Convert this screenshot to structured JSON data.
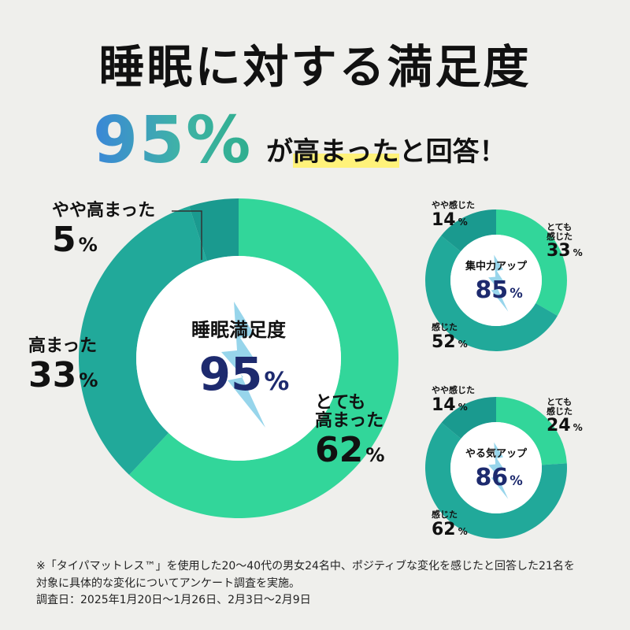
{
  "headline": {
    "title": "睡眠に対する満足度",
    "big_value": "95%",
    "tail_pre": "が",
    "tail_highlight": "高まった",
    "tail_post": "と回答！"
  },
  "colors": {
    "dark_teal": "#1aa297",
    "mid_teal": "#21b19f",
    "bright_green": "#32d69a",
    "center_value": "#1d2a6e",
    "bolt": "#74c7e4",
    "highlight": "#fff27a"
  },
  "chart_data": [
    {
      "type": "pie",
      "center_title": "睡眠満足度",
      "center_value": "95",
      "center_unit": "%",
      "slices": [
        {
          "label": "とても高まった",
          "label_lines": [
            "とても",
            "高まった"
          ],
          "value": 62,
          "color": "#32d69a"
        },
        {
          "label": "高まった",
          "label_lines": [
            "高まった"
          ],
          "value": 33,
          "color": "#21a99a"
        },
        {
          "label": "やや高まった",
          "label_lines": [
            "やや高まった"
          ],
          "value": 5,
          "color": "#1a9a8f"
        }
      ]
    },
    {
      "type": "pie",
      "center_title": "集中力アップ",
      "center_value": "85",
      "center_unit": "%",
      "slices": [
        {
          "label": "とても感じた",
          "label_lines": [
            "とても",
            "感じた"
          ],
          "value": 33,
          "color": "#32d69a"
        },
        {
          "label": "感じた",
          "label_lines": [
            "感じた"
          ],
          "value": 52,
          "color": "#21a99a"
        },
        {
          "label": "やや感じた",
          "label_lines": [
            "やや感じた"
          ],
          "value": 14,
          "color": "#1a9a8f"
        }
      ]
    },
    {
      "type": "pie",
      "center_title": "やる気アップ",
      "center_value": "86",
      "center_unit": "%",
      "slices": [
        {
          "label": "とても感じた",
          "label_lines": [
            "とても",
            "感じた"
          ],
          "value": 24,
          "color": "#32d69a"
        },
        {
          "label": "感じた",
          "label_lines": [
            "感じた"
          ],
          "value": 62,
          "color": "#21a99a"
        },
        {
          "label": "やや感じた",
          "label_lines": [
            "やや感じた"
          ],
          "value": 14,
          "color": "#1a9a8f"
        }
      ]
    }
  ],
  "footnote": {
    "line1": "※「タイパマットレス™」を使用した20〜40代の男女24名中、ポジティブな変化を感じたと回答した21名を",
    "line2": "対象に具体的な変化についてアンケート調査を実施。",
    "line3": "調査日：2025年1月20日〜1月26日、2月3日〜2月9日"
  }
}
